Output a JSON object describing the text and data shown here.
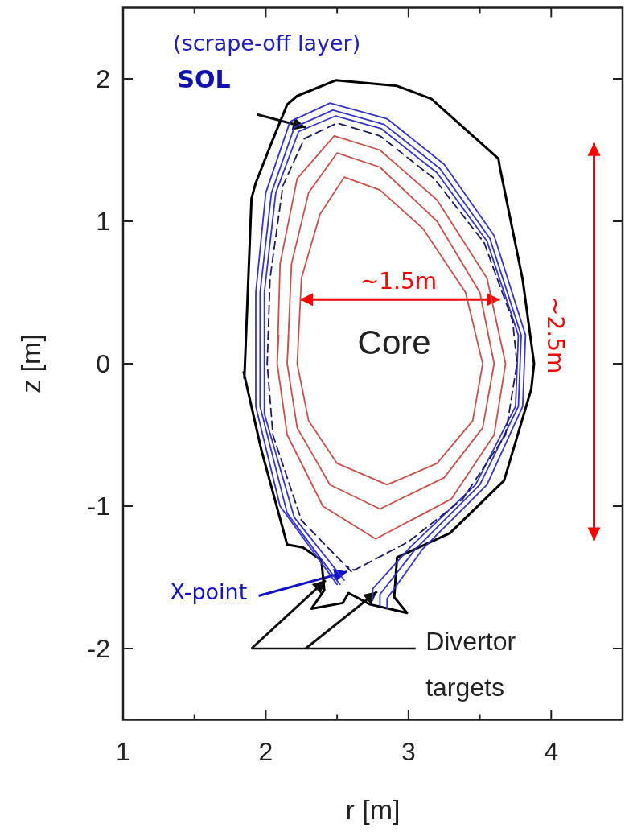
{
  "chart_data": {
    "type": "line",
    "xlabel": "r [m]",
    "ylabel": "z [m]",
    "xlim": [
      1,
      4.5
    ],
    "ylim": [
      -2.5,
      2.5
    ],
    "xticks": [
      1,
      {
        "value": 1.5,
        "label": null
      },
      2,
      {
        "value": 2.5,
        "label": null
      },
      3,
      {
        "value": 3.5,
        "label": null
      },
      4
    ],
    "yticks": [
      -2,
      -1,
      0,
      1,
      2
    ],
    "grid": false,
    "marker": "none",
    "series": [
      {
        "color": "#000000",
        "line_style": "solid",
        "x": [
          1.845,
          1.97,
          2.15,
          2.26,
          2.39,
          2.41,
          2.32,
          2.54,
          2.58,
          2.73,
          2.99,
          2.9,
          2.92,
          3.29,
          3.67,
          3.86,
          3.88,
          3.8,
          3.64,
          3.63,
          3.16,
          2.92,
          2.49,
          2.22,
          2.15,
          2.04,
          1.93,
          1.9,
          1.85
        ],
        "values": [
          -0.06,
          -0.61,
          -1.27,
          -1.29,
          -1.38,
          -1.59,
          -1.72,
          -1.68,
          -1.61,
          -1.69,
          -1.75,
          -1.64,
          -1.36,
          -1.19,
          -0.82,
          -0.18,
          0,
          0.59,
          1.38,
          1.44,
          1.86,
          1.95,
          1.99,
          1.88,
          1.82,
          1.55,
          1.27,
          1.16,
          -0.1
        ]
      },
      {
        "color": "#3535c8",
        "line_style": "solid",
        "x": [
          2.5,
          2.1,
          1.93,
          1.93,
          2.0,
          2.17,
          2.45,
          2.85,
          3.25,
          3.6,
          3.82,
          3.8,
          3.55,
          3.1,
          2.85,
          2.85
        ],
        "values": [
          -1.55,
          -1.0,
          -0.3,
          0.5,
          1.2,
          1.7,
          1.83,
          1.72,
          1.4,
          0.9,
          0.2,
          -0.3,
          -0.85,
          -1.3,
          -1.65,
          -1.72
        ]
      },
      {
        "color": "#3535c8",
        "line_style": "solid",
        "x": [
          2.52,
          2.15,
          1.96,
          1.96,
          2.04,
          2.2,
          2.47,
          2.83,
          3.22,
          3.57,
          3.79,
          3.77,
          3.5,
          3.05,
          2.8,
          2.8
        ],
        "values": [
          -1.55,
          -1.05,
          -0.3,
          0.5,
          1.2,
          1.66,
          1.78,
          1.68,
          1.37,
          0.88,
          0.2,
          -0.3,
          -0.85,
          -1.3,
          -1.62,
          -1.7
        ]
      },
      {
        "color": "#3535c8",
        "line_style": "solid",
        "x": [
          2.55,
          2.2,
          1.99,
          1.99,
          2.07,
          2.23,
          2.49,
          2.81,
          3.2,
          3.55,
          3.77,
          3.75,
          3.47,
          3.02,
          2.75,
          2.75
        ],
        "values": [
          -1.52,
          -1.08,
          -0.35,
          0.5,
          1.2,
          1.63,
          1.74,
          1.65,
          1.34,
          0.86,
          0.2,
          -0.3,
          -0.85,
          -1.28,
          -1.58,
          -1.66
        ]
      },
      {
        "color": "#1a1a5e",
        "line_style": "dashed",
        "x": [
          2.6,
          2.25,
          2.05,
          2.01,
          2.03,
          2.12,
          2.27,
          2.5,
          2.8,
          3.18,
          3.53,
          3.73,
          3.76,
          3.68,
          3.38,
          3.0,
          2.62,
          2.56
        ],
        "values": [
          -1.46,
          -1.1,
          -0.5,
          0,
          0.6,
          1.25,
          1.58,
          1.69,
          1.6,
          1.3,
          0.85,
          0.3,
          0,
          -0.5,
          -0.95,
          -1.25,
          -1.45,
          -1.42
        ]
      },
      {
        "color": "#c8504d",
        "line_style": "solid",
        "x": [
          2.08,
          2.1,
          2.22,
          2.48,
          2.8,
          3.2,
          3.55,
          3.68,
          3.6,
          3.3,
          2.77,
          2.4,
          2.15,
          2.08,
          2.09
        ],
        "values": [
          0,
          0.7,
          1.3,
          1.6,
          1.5,
          1.15,
          0.6,
          0,
          -0.5,
          -0.95,
          -1.23,
          -1.0,
          -0.5,
          0,
          0.2
        ]
      },
      {
        "color": "#c8504d",
        "line_style": "solid",
        "x": [
          2.15,
          2.18,
          2.3,
          2.5,
          2.8,
          3.2,
          3.5,
          3.6,
          3.52,
          3.25,
          2.8,
          2.45,
          2.22,
          2.15,
          2.16
        ],
        "values": [
          0,
          0.7,
          1.2,
          1.48,
          1.38,
          1.0,
          0.5,
          0,
          -0.45,
          -0.8,
          -1.02,
          -0.85,
          -0.45,
          0,
          0.2
        ]
      },
      {
        "color": "#c8504d",
        "line_style": "solid",
        "x": [
          2.22,
          2.25,
          2.38,
          2.55,
          2.8,
          3.1,
          3.4,
          3.52,
          3.45,
          3.2,
          2.85,
          2.5,
          2.3,
          2.22,
          2.23
        ],
        "values": [
          0,
          0.6,
          1.05,
          1.31,
          1.22,
          0.95,
          0.5,
          0,
          -0.4,
          -0.7,
          -0.85,
          -0.7,
          -0.4,
          0,
          0.2
        ]
      }
    ],
    "annotations": [
      "(scrape-off layer)",
      "SOL",
      "~1.5m",
      "Core",
      "~2.5m",
      {
        "text": "X-point",
        "x": 2.57,
        "y": -1.46
      },
      "Divertor",
      "targets"
    ]
  }
}
